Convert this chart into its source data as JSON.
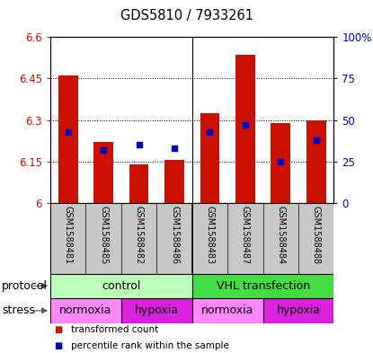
{
  "title": "GDS5810 / 7933261",
  "samples": [
    "GSM1588481",
    "GSM1588485",
    "GSM1588482",
    "GSM1588486",
    "GSM1588483",
    "GSM1588487",
    "GSM1588484",
    "GSM1588488"
  ],
  "bar_values": [
    6.46,
    6.22,
    6.14,
    6.155,
    6.325,
    6.535,
    6.29,
    6.3
  ],
  "bar_bottom": 6.0,
  "percentile_pct": [
    43,
    32,
    35,
    33,
    43,
    47,
    25,
    38
  ],
  "ylim_left": [
    6.0,
    6.6
  ],
  "ylim_right": [
    0,
    100
  ],
  "yticks_left": [
    6.0,
    6.15,
    6.3,
    6.45,
    6.6
  ],
  "yticks_right": [
    0,
    25,
    50,
    75,
    100
  ],
  "ytick_labels_left": [
    "6",
    "6.15",
    "6.3",
    "6.45",
    "6.6"
  ],
  "ytick_labels_right": [
    "0",
    "25",
    "50",
    "75",
    "100%"
  ],
  "bar_color": "#cc1100",
  "dot_color": "#0000cc",
  "protocol_groups": [
    {
      "label": "control",
      "start": 0,
      "end": 4,
      "color": "#bbffbb"
    },
    {
      "label": "VHL transfection",
      "start": 4,
      "end": 8,
      "color": "#44dd44"
    }
  ],
  "stress_groups": [
    {
      "label": "normoxia",
      "start": 0,
      "end": 2,
      "color": "#ff88ff"
    },
    {
      "label": "hypoxia",
      "start": 2,
      "end": 4,
      "color": "#dd22dd"
    },
    {
      "label": "normoxia",
      "start": 4,
      "end": 6,
      "color": "#ff88ff"
    },
    {
      "label": "hypoxia",
      "start": 6,
      "end": 8,
      "color": "#dd22dd"
    }
  ],
  "legend_items": [
    {
      "label": "transformed count",
      "color": "#cc1100"
    },
    {
      "label": "percentile rank within the sample",
      "color": "#0000cc"
    }
  ],
  "left_color": "#cc1100",
  "right_color": "#0000cc",
  "label_protocol": "protocol",
  "label_stress": "stress",
  "bar_width": 0.55,
  "sample_bg_color": "#c8c8c8",
  "divider_color": "#555555"
}
